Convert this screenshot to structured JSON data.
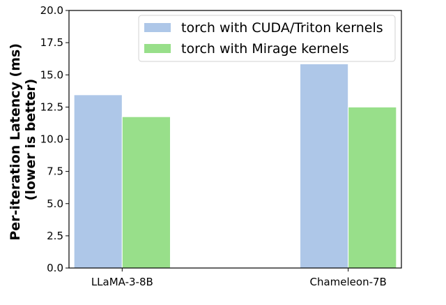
{
  "chart_data": {
    "type": "bar",
    "categories": [
      "LLaMA-3-8B",
      "Chameleon-7B"
    ],
    "series": [
      {
        "name": "torch with CUDA/Triton kernels",
        "color": "#aec7e8",
        "values": [
          13.45,
          15.85
        ]
      },
      {
        "name": "torch with Mirage kernels",
        "color": "#98df8a",
        "values": [
          11.75,
          12.5
        ]
      }
    ],
    "title": "",
    "xlabel": "",
    "ylabel_lines": [
      "Per-iteration Latency (ms)",
      "(lower is better)"
    ],
    "ylim": [
      0,
      20
    ],
    "yticks": [
      "0.0",
      "2.5",
      "5.0",
      "7.5",
      "10.0",
      "12.5",
      "15.0",
      "17.5",
      "20.0"
    ],
    "grid": false,
    "legend_position": "top-right"
  }
}
